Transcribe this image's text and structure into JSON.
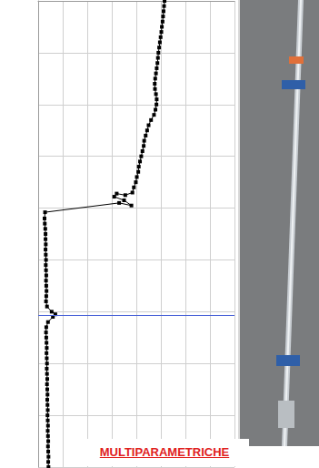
{
  "chart_data": {
    "type": "line",
    "caption": "MULTIPARAMETRICHE",
    "x": [
      5.15,
      5.13,
      5.11,
      5.09,
      5.07,
      5.04,
      5.02,
      4.99,
      4.96,
      4.93,
      4.9,
      4.88,
      4.86,
      4.83,
      4.8,
      4.77,
      4.75,
      4.76,
      4.8,
      4.83,
      4.82,
      4.78,
      4.72,
      4.6,
      4.5,
      4.44,
      4.38,
      4.32,
      4.3,
      4.25,
      4.2,
      4.15,
      4.1,
      4.08,
      4.02,
      3.98,
      3.9,
      3.84,
      3.55,
      3.2,
      3.1,
      3.5,
      3.8,
      3.3,
      0.28,
      0.26,
      0.27,
      0.29,
      0.3,
      0.3,
      0.31,
      0.3,
      0.31,
      0.32,
      0.31,
      0.32,
      0.33,
      0.32,
      0.33,
      0.34,
      0.33,
      0.32,
      0.36,
      0.55,
      0.7,
      0.6,
      0.4,
      0.33,
      0.32,
      0.33,
      0.34,
      0.35,
      0.34,
      0.35,
      0.36,
      0.35,
      0.36,
      0.37,
      0.36,
      0.37,
      0.38,
      0.37,
      0.38,
      0.39,
      0.38,
      0.39,
      0.4,
      0.39,
      0.4,
      0.41,
      0.4,
      0.41,
      0.42,
      0.41,
      0.42
    ],
    "y": [
      0.0,
      0.1,
      0.2,
      0.3,
      0.4,
      0.5,
      0.6,
      0.7,
      0.8,
      0.9,
      1.0,
      1.1,
      1.2,
      1.3,
      1.4,
      1.5,
      1.6,
      1.7,
      1.8,
      1.9,
      2.0,
      2.1,
      2.2,
      2.3,
      2.4,
      2.5,
      2.6,
      2.7,
      2.8,
      2.9,
      3.0,
      3.1,
      3.2,
      3.3,
      3.4,
      3.5,
      3.6,
      3.7,
      3.75,
      3.72,
      3.78,
      3.85,
      3.95,
      3.9,
      4.08,
      4.2,
      4.3,
      4.4,
      4.5,
      4.6,
      4.7,
      4.8,
      4.9,
      5.0,
      5.1,
      5.2,
      5.3,
      5.4,
      5.5,
      5.6,
      5.7,
      5.8,
      5.9,
      6.0,
      6.05,
      6.1,
      6.2,
      6.3,
      6.4,
      6.5,
      6.6,
      6.7,
      6.8,
      6.9,
      7.0,
      7.1,
      7.2,
      7.3,
      7.4,
      7.5,
      7.6,
      7.7,
      7.8,
      7.9,
      8.0,
      8.1,
      8.2,
      8.3,
      8.4,
      8.5,
      8.6,
      8.7,
      8.8,
      8.9,
      9.0
    ],
    "xlim": [
      0,
      8
    ],
    "xticks": [
      0,
      1,
      2,
      3,
      4,
      5,
      6,
      7,
      8
    ],
    "ylim": [
      0,
      9
    ],
    "yticks": [
      0,
      1,
      2,
      3,
      4,
      5,
      6,
      7,
      8,
      9
    ],
    "hlines": [
      6.07
    ],
    "grid": true,
    "tick_labels": false,
    "color": "#000000",
    "marker": "square",
    "line_style": "solid"
  }
}
